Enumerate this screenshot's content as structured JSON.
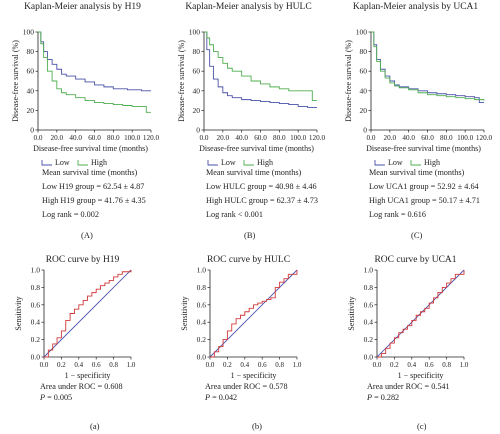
{
  "colors": {
    "low": "#4a52a8",
    "high": "#4fae4f",
    "roc": "#d23a3a",
    "diag": "#4b57b0"
  },
  "km": [
    {
      "id": "h19",
      "title": "Kaplan-Meier analysis by H19",
      "tag": "(A)",
      "ylabel": "Disease-free survival (%)",
      "xlabel": "Disease-free survival time (months)",
      "legend": [
        "Low",
        "High"
      ],
      "stats": [
        "Mean survival time (months)",
        "Low H19 group = 62.54 ± 4.87",
        "High H19 group = 41.76 ± 4.35",
        "Log rank = 0.002"
      ]
    },
    {
      "id": "hulc",
      "title": "Kaplan-Meier analysis by HULC",
      "tag": "(B)",
      "ylabel": "Disease-free survival (%)",
      "xlabel": "Disease-free survival time (months)",
      "legend": [
        "Low",
        "High"
      ],
      "stats": [
        "Mean survival time (months)",
        "Low HULC group = 40.98 ± 4.46",
        "High HULC group = 62.37 ± 4.73",
        "Log rank < 0.001"
      ]
    },
    {
      "id": "uca1",
      "title": "Kaplan-Meier analysis by UCA1",
      "tag": "(C)",
      "ylabel": "Disease-free survival (%)",
      "xlabel": "Disease-free survival time (months)",
      "legend": [
        "Low",
        "High"
      ],
      "stats": [
        "Mean survival time (months)",
        "Low UCA1 group = 52.92 ± 4.64",
        "High UCA1 group = 50.17 ± 4.71",
        "Log rank = 0.616"
      ]
    }
  ],
  "roc": [
    {
      "id": "h19",
      "title": "ROC curve by H19",
      "tag": "(a)",
      "ylabel": "Sensitivity",
      "xlabel": "1 − specificity",
      "auc": "Area under ROC = 0.608",
      "p_label": "P",
      "p_value": " = 0.005"
    },
    {
      "id": "hulc",
      "title": "ROC curve by HULC",
      "tag": "(b)",
      "ylabel": "Sensitivity",
      "xlabel": "1 − specificity",
      "auc": "Area under ROC = 0.578",
      "p_label": "P",
      "p_value": " = 0.042"
    },
    {
      "id": "uca1",
      "title": "ROC curve by UCA1",
      "tag": "(c)",
      "ylabel": "Sensitivity",
      "xlabel": "1 − specificity",
      "auc": "Area under ROC = 0.541",
      "p_label": "P",
      "p_value": " = 0.282"
    }
  ],
  "chart_data": [
    {
      "type": "line",
      "title": "Kaplan-Meier analysis by H19",
      "xlabel": "Disease-free survival time (months)",
      "ylabel": "Disease-free survival (%)",
      "xlim": [
        0,
        120
      ],
      "ylim": [
        0,
        100
      ],
      "xticks": [
        "0.0",
        "20.0",
        "40.0",
        "60.0",
        "80.0",
        "100.0",
        "120.0"
      ],
      "yticks": [
        "0",
        "20",
        "40",
        "60",
        "80",
        "100"
      ],
      "legend_position": "bottom",
      "series": [
        {
          "name": "Low",
          "x": [
            0,
            3,
            6,
            10,
            15,
            20,
            25,
            30,
            40,
            50,
            60,
            70,
            80,
            95,
            110,
            120
          ],
          "y": [
            100,
            90,
            80,
            72,
            67,
            62,
            57,
            55,
            52,
            49,
            46,
            44,
            42,
            41,
            40,
            40
          ]
        },
        {
          "name": "High",
          "x": [
            0,
            3,
            6,
            10,
            15,
            20,
            25,
            30,
            40,
            50,
            60,
            70,
            80,
            90,
            100,
            110,
            115,
            120
          ],
          "y": [
            100,
            88,
            74,
            60,
            50,
            42,
            38,
            36,
            33,
            30,
            28,
            27,
            26,
            25,
            24,
            24,
            18,
            18
          ]
        }
      ]
    },
    {
      "type": "line",
      "title": "Kaplan-Meier analysis by HULC",
      "xlabel": "Disease-free survival time (months)",
      "ylabel": "Disease-free survival (%)",
      "xlim": [
        0,
        120
      ],
      "ylim": [
        0,
        100
      ],
      "xticks": [
        "0.0",
        "20.0",
        "40.0",
        "60.0",
        "80.0",
        "100.0",
        "120.0"
      ],
      "yticks": [
        "0",
        "20",
        "40",
        "60",
        "80",
        "100"
      ],
      "legend_position": "bottom",
      "series": [
        {
          "name": "Low",
          "x": [
            0,
            3,
            6,
            10,
            15,
            20,
            25,
            30,
            40,
            50,
            60,
            70,
            80,
            90,
            100,
            110,
            120
          ],
          "y": [
            100,
            82,
            65,
            52,
            44,
            38,
            35,
            33,
            31,
            30,
            29,
            28,
            27,
            26,
            24,
            23,
            23
          ]
        },
        {
          "name": "High",
          "x": [
            0,
            3,
            6,
            10,
            15,
            20,
            25,
            30,
            40,
            50,
            60,
            70,
            80,
            90,
            100,
            110,
            115,
            120
          ],
          "y": [
            100,
            94,
            87,
            80,
            74,
            68,
            63,
            60,
            55,
            50,
            47,
            44,
            42,
            40,
            40,
            40,
            30,
            30
          ]
        }
      ]
    },
    {
      "type": "line",
      "title": "Kaplan-Meier analysis by UCA1",
      "xlabel": "Disease-free survival time (months)",
      "ylabel": "Disease-free survival (%)",
      "xlim": [
        0,
        120
      ],
      "ylim": [
        0,
        100
      ],
      "xticks": [
        "0.0",
        "20.0",
        "40.0",
        "60.0",
        "80.0",
        "100.0",
        "120.0"
      ],
      "yticks": [
        "0",
        "20",
        "40",
        "60",
        "80",
        "100"
      ],
      "legend_position": "bottom",
      "series": [
        {
          "name": "Low",
          "x": [
            0,
            3,
            6,
            10,
            15,
            20,
            25,
            30,
            40,
            50,
            60,
            70,
            80,
            90,
            100,
            110,
            115,
            120
          ],
          "y": [
            100,
            87,
            72,
            62,
            55,
            50,
            46,
            44,
            42,
            40,
            38,
            37,
            36,
            35,
            34,
            33,
            28,
            28
          ]
        },
        {
          "name": "High",
          "x": [
            0,
            3,
            6,
            10,
            15,
            20,
            25,
            30,
            40,
            50,
            60,
            70,
            80,
            90,
            100,
            110,
            120
          ],
          "y": [
            100,
            85,
            70,
            60,
            53,
            48,
            45,
            43,
            41,
            38,
            36,
            35,
            34,
            33,
            32,
            31,
            30
          ]
        }
      ]
    },
    {
      "type": "line",
      "title": "ROC curve by H19",
      "xlabel": "1 − specificity",
      "ylabel": "Sensitivity",
      "xlim": [
        0,
        1
      ],
      "ylim": [
        0,
        1
      ],
      "xticks": [
        "0.0",
        "0.2",
        "0.4",
        "0.6",
        "0.8",
        "1.0"
      ],
      "yticks": [
        "0.0",
        "0.2",
        "0.4",
        "0.6",
        "0.8",
        "1.0"
      ],
      "series": [
        {
          "x": [
            0,
            0.05,
            0.1,
            0.15,
            0.2,
            0.25,
            0.3,
            0.35,
            0.4,
            0.45,
            0.5,
            0.55,
            0.6,
            0.65,
            0.7,
            0.75,
            0.8,
            0.85,
            0.9,
            1.0
          ],
          "y": [
            0,
            0.08,
            0.15,
            0.22,
            0.3,
            0.42,
            0.5,
            0.55,
            0.6,
            0.65,
            0.7,
            0.74,
            0.78,
            0.82,
            0.85,
            0.88,
            0.92,
            0.95,
            0.98,
            1.0
          ]
        },
        {
          "x": [
            0,
            1
          ],
          "y": [
            0,
            1
          ]
        }
      ]
    },
    {
      "type": "line",
      "title": "ROC curve by HULC",
      "xlabel": "1 − specificity",
      "ylabel": "Sensitivity",
      "xlim": [
        0,
        1
      ],
      "ylim": [
        0,
        1
      ],
      "xticks": [
        "0.0",
        "0.2",
        "0.4",
        "0.6",
        "0.8",
        "1.0"
      ],
      "yticks": [
        "0.0",
        "0.2",
        "0.4",
        "0.6",
        "0.8",
        "1.0"
      ],
      "series": [
        {
          "x": [
            0,
            0.05,
            0.1,
            0.15,
            0.2,
            0.25,
            0.3,
            0.35,
            0.4,
            0.45,
            0.5,
            0.55,
            0.6,
            0.65,
            0.7,
            0.75,
            0.8,
            0.85,
            0.9,
            1.0
          ],
          "y": [
            0,
            0.06,
            0.12,
            0.2,
            0.3,
            0.38,
            0.44,
            0.48,
            0.52,
            0.56,
            0.6,
            0.62,
            0.64,
            0.66,
            0.68,
            0.8,
            0.86,
            0.9,
            0.95,
            1.0
          ]
        },
        {
          "x": [
            0,
            1
          ],
          "y": [
            0,
            1
          ]
        }
      ]
    },
    {
      "type": "line",
      "title": "ROC curve by UCA1",
      "xlabel": "1 − specificity",
      "ylabel": "Sensitivity",
      "xlim": [
        0,
        1
      ],
      "ylim": [
        0,
        1
      ],
      "xticks": [
        "0.0",
        "0.2",
        "0.4",
        "0.6",
        "0.8",
        "1.0"
      ],
      "yticks": [
        "0.0",
        "0.2",
        "0.4",
        "0.6",
        "0.8",
        "1.0"
      ],
      "series": [
        {
          "x": [
            0,
            0.05,
            0.1,
            0.15,
            0.2,
            0.25,
            0.3,
            0.35,
            0.4,
            0.45,
            0.5,
            0.55,
            0.6,
            0.65,
            0.7,
            0.75,
            0.8,
            0.85,
            0.9,
            1.0
          ],
          "y": [
            0,
            0.04,
            0.1,
            0.16,
            0.22,
            0.28,
            0.32,
            0.36,
            0.42,
            0.48,
            0.52,
            0.56,
            0.62,
            0.68,
            0.74,
            0.8,
            0.85,
            0.9,
            0.95,
            1.0
          ]
        },
        {
          "x": [
            0,
            1
          ],
          "y": [
            0,
            1
          ]
        }
      ]
    }
  ]
}
